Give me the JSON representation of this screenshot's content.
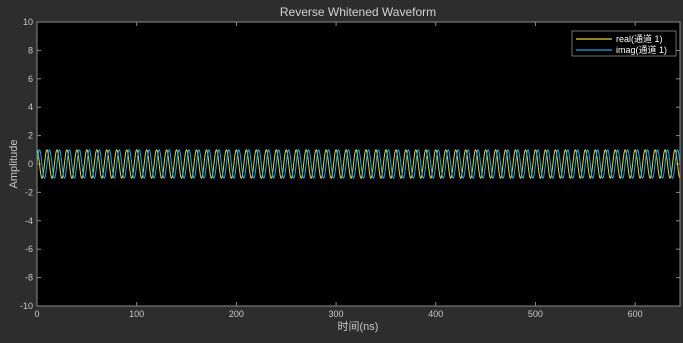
{
  "chart_data": {
    "type": "line",
    "title": "Reverse Whitened Waveform",
    "xlabel": "时间(ns)",
    "ylabel": "Amplitude",
    "xlim": [
      0,
      645
    ],
    "ylim": [
      -10,
      10
    ],
    "xticks": [
      0,
      100,
      200,
      300,
      400,
      500,
      600
    ],
    "yticks": [
      -10,
      -8,
      -6,
      -4,
      -2,
      0,
      2,
      4,
      6,
      8,
      10
    ],
    "grid": false,
    "legend_position": "top-right",
    "series": [
      {
        "name": "real(通道 1)",
        "color": "#e6d23a",
        "function": "cos",
        "amplitude": 1,
        "period_ns": 10,
        "phase_rad": 0
      },
      {
        "name": "imag(通道 1)",
        "color": "#19a9e0",
        "function": "sin",
        "amplitude": 1,
        "period_ns": 10,
        "phase_rad": 0
      }
    ]
  }
}
